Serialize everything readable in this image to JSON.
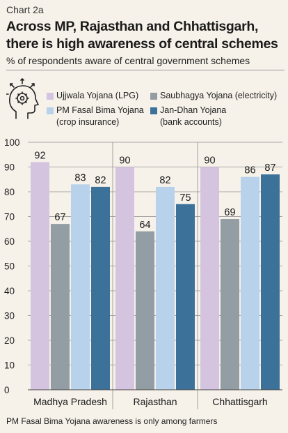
{
  "header": {
    "kicker": "Chart 2a",
    "title": "Across MP, Rajasthan and Chhattisgarh, there is high awareness of central schemes",
    "subtitle": "% of respondents aware of central government schemes",
    "icon": "brain-gear-icon"
  },
  "legend": [
    {
      "line1": "Ujjwala Yojana (LPG)",
      "line2": ""
    },
    {
      "line1": "Saubhagya Yojana (electricity)",
      "line2": ""
    },
    {
      "line1": "PM Fasal Bima Yojana",
      "line2": "(crop insurance)"
    },
    {
      "line1": "Jan-Dhan Yojana",
      "line2": "(bank accounts)"
    }
  ],
  "chart_data": {
    "type": "bar",
    "categories": [
      "Madhya Pradesh",
      "Rajasthan",
      "Chhattisgarh"
    ],
    "series": [
      {
        "name": "Ujjwala Yojana (LPG)",
        "color": "#d5c4e0",
        "values": [
          92,
          90,
          90
        ]
      },
      {
        "name": "Saubhagya Yojana (electricity)",
        "color": "#929ea3",
        "values": [
          67,
          64,
          69
        ]
      },
      {
        "name": "PM Fasal Bima Yojana (crop insurance)",
        "color": "#b9d2ec",
        "values": [
          83,
          82,
          86
        ]
      },
      {
        "name": "Jan-Dhan Yojana (bank accounts)",
        "color": "#3c7299",
        "values": [
          82,
          75,
          87
        ]
      }
    ],
    "ylim": [
      0,
      100
    ],
    "yticks": [
      0,
      10,
      20,
      30,
      40,
      50,
      60,
      70,
      80,
      90,
      100
    ],
    "grid": true,
    "legend_position": "top"
  },
  "footnote": "PM Fasal Bima Yojana awareness is only among farmers"
}
